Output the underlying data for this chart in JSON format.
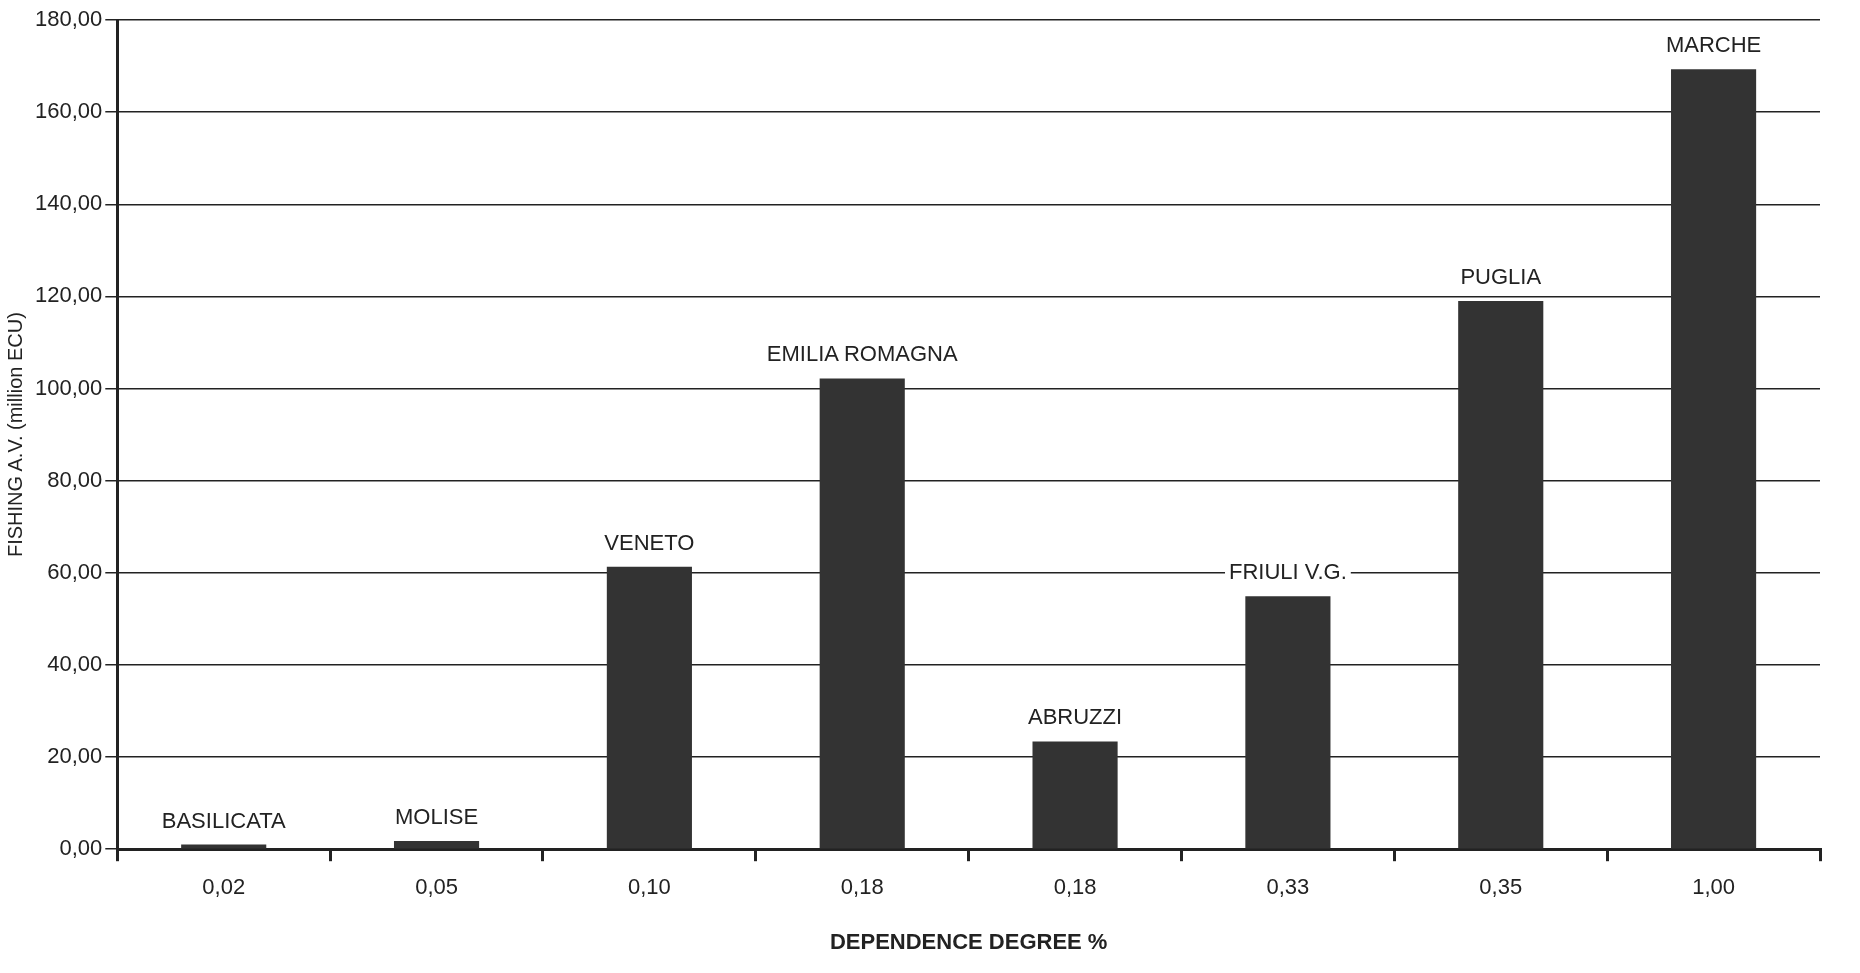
{
  "chart_data": {
    "type": "bar",
    "xlabel": "DEPENDENCE DEGREE %",
    "ylabel": "FISHING A.V. (million ECU)",
    "categories": [
      "0,02",
      "0,05",
      "0,10",
      "0,18",
      "0,18",
      "0,33",
      "0,35",
      "1,00"
    ],
    "values": [
      1,
      1.8,
      61.3,
      102.2,
      23.4,
      54.9,
      119,
      169.3
    ],
    "value_labels": [
      "BASILICATA",
      "MOLISE",
      "VENETO",
      "EMILIA ROMAGNA",
      "ABRUZZI",
      "FRIULI V.G.",
      "PUGLIA",
      "MARCHE"
    ],
    "color": "#333333",
    "ylim": [
      0,
      180
    ],
    "yticks": [
      {
        "value": 0,
        "label": "0,00"
      },
      {
        "value": 20,
        "label": "20,00"
      },
      {
        "value": 40,
        "label": "40,00"
      },
      {
        "value": 60,
        "label": "60,00"
      },
      {
        "value": 80,
        "label": "80,00"
      },
      {
        "value": 100,
        "label": "100,00"
      },
      {
        "value": 120,
        "label": "120,00"
      },
      {
        "value": 140,
        "label": "140,00"
      },
      {
        "value": 160,
        "label": "160,00"
      },
      {
        "value": 180,
        "label": "180,00"
      }
    ],
    "grid": "y",
    "legend": false
  }
}
